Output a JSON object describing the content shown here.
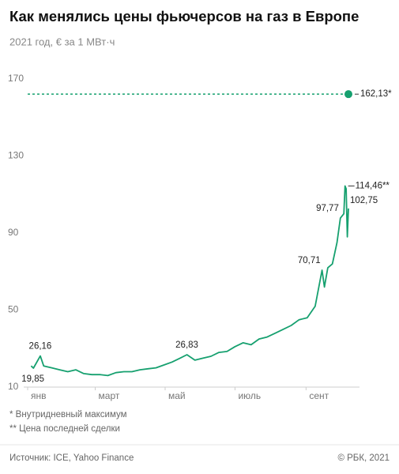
{
  "chart_data": {
    "type": "line",
    "title": "Как менялись цены фьючерсов на газ в Европе",
    "subtitle": "2021 год, € за 1 МВт·ч",
    "x": [
      "2021-01-04",
      "2021-01-06",
      "2021-01-12",
      "2021-01-15",
      "2021-01-22",
      "2021-01-29",
      "2021-02-05",
      "2021-02-12",
      "2021-02-19",
      "2021-02-26",
      "2021-03-05",
      "2021-03-12",
      "2021-03-19",
      "2021-03-26",
      "2021-04-02",
      "2021-04-09",
      "2021-04-16",
      "2021-04-23",
      "2021-04-30",
      "2021-05-07",
      "2021-05-14",
      "2021-05-20",
      "2021-05-27",
      "2021-06-03",
      "2021-06-10",
      "2021-06-17",
      "2021-06-24",
      "2021-07-01",
      "2021-07-08",
      "2021-07-15",
      "2021-07-22",
      "2021-07-29",
      "2021-08-05",
      "2021-08-12",
      "2021-08-19",
      "2021-08-26",
      "2021-09-02",
      "2021-09-09",
      "2021-09-15",
      "2021-09-17",
      "2021-09-20",
      "2021-09-24",
      "2021-09-28",
      "2021-10-01",
      "2021-10-04",
      "2021-10-05",
      "2021-10-06",
      "2021-10-07",
      "2021-10-08"
    ],
    "series": [
      {
        "color": "#16a06f",
        "values": [
          21,
          19.85,
          26.16,
          21,
          20,
          19,
          18,
          19,
          17,
          16.5,
          16.5,
          16,
          17.5,
          18,
          18,
          19,
          19.5,
          20,
          21.5,
          23,
          25,
          26.83,
          24,
          25,
          26,
          28,
          28.5,
          31,
          33,
          32,
          35,
          36,
          38,
          40,
          42,
          45,
          46,
          52,
          70.71,
          62,
          72,
          74,
          85,
          97.77,
          100,
          114.46,
          113,
          88,
          102.75
        ],
        "value_labels": [
          null,
          "19,85",
          "26,16",
          null,
          null,
          null,
          null,
          null,
          null,
          null,
          null,
          null,
          null,
          null,
          null,
          null,
          null,
          null,
          null,
          null,
          null,
          "26,83",
          null,
          null,
          null,
          null,
          null,
          null,
          null,
          null,
          null,
          null,
          null,
          null,
          null,
          null,
          null,
          null,
          "70,71",
          null,
          null,
          null,
          null,
          "97,77",
          null,
          "114,46**",
          null,
          null,
          "102,75"
        ]
      }
    ],
    "intraday_max": {
      "value": 162.13,
      "label": "162,13*"
    },
    "xlim": [
      "2021-01-01",
      "2021-10-08"
    ],
    "xticks": [
      {
        "value": "2021-01-01",
        "label": "янв"
      },
      {
        "value": "2021-03-01",
        "label": "март"
      },
      {
        "value": "2021-05-01",
        "label": "май"
      },
      {
        "value": "2021-07-01",
        "label": "июль"
      },
      {
        "value": "2021-09-01",
        "label": "сент"
      }
    ],
    "ylim": [
      10,
      170
    ],
    "yticks": [
      10,
      50,
      90,
      130,
      170
    ],
    "grid": false,
    "footnotes": [
      "* Внутридневный максимум",
      "** Цена последней сделки"
    ],
    "source": "Источник: ICE, Yahoo Finance",
    "copyright": "© РБК, 2021"
  }
}
